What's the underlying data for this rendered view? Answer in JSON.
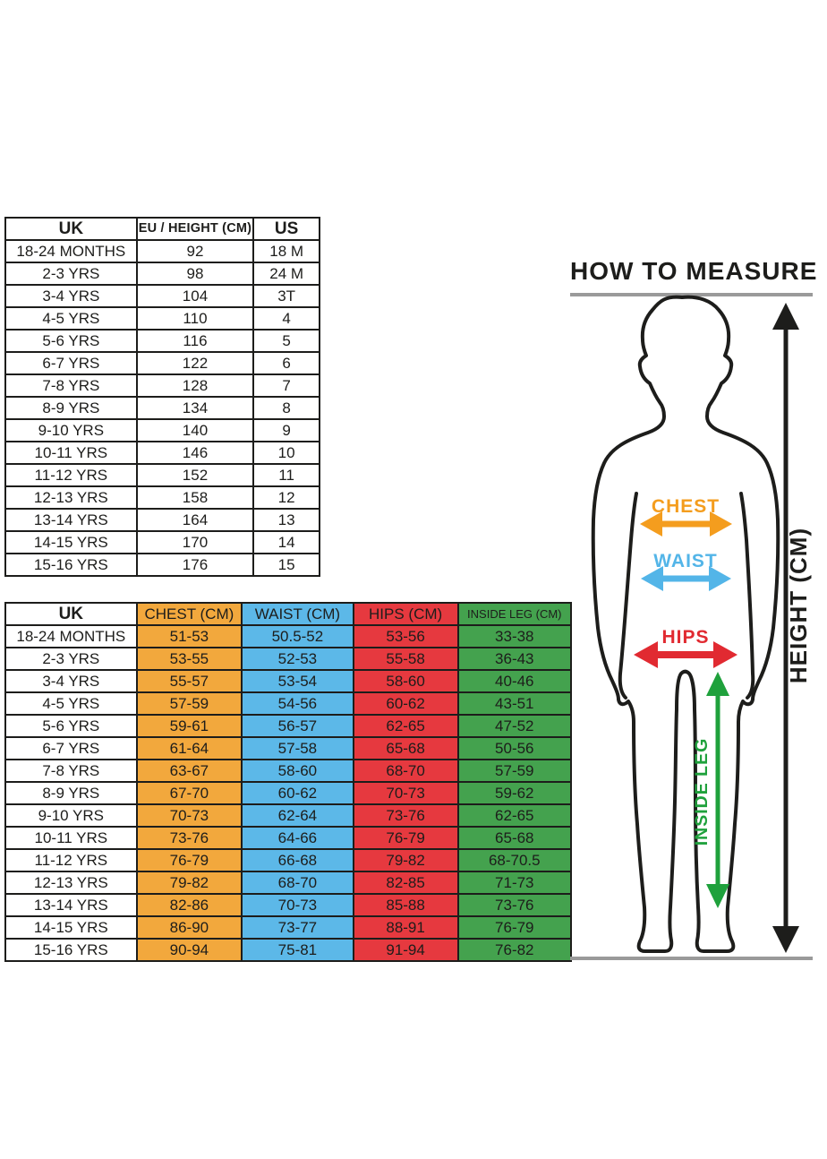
{
  "colors": {
    "table_chest": "#F2A83D",
    "table_waist": "#5CB8E8",
    "table_hips": "#E6393F",
    "table_inside_leg": "#44A24E",
    "arrow_chest": "#F49D1E",
    "arrow_waist": "#53B5E8",
    "arrow_hips": "#E12A31",
    "arrow_inside_leg": "#1FA13C",
    "arrow_height": "#1d1d1b",
    "gray_line": "#9a9a9a",
    "outline": "#1d1d1b"
  },
  "size_table": {
    "columns": [
      "UK",
      "EU / HEIGHT (CM)",
      "US"
    ],
    "rows": [
      [
        "18-24 MONTHS",
        "92",
        "18 M"
      ],
      [
        "2-3 YRS",
        "98",
        "24 M"
      ],
      [
        "3-4 YRS",
        "104",
        "3T"
      ],
      [
        "4-5 YRS",
        "110",
        "4"
      ],
      [
        "5-6 YRS",
        "116",
        "5"
      ],
      [
        "6-7 YRS",
        "122",
        "6"
      ],
      [
        "7-8 YRS",
        "128",
        "7"
      ],
      [
        "8-9 YRS",
        "134",
        "8"
      ],
      [
        "9-10 YRS",
        "140",
        "9"
      ],
      [
        "10-11 YRS",
        "146",
        "10"
      ],
      [
        "11-12 YRS",
        "152",
        "11"
      ],
      [
        "12-13 YRS",
        "158",
        "12"
      ],
      [
        "13-14 YRS",
        "164",
        "13"
      ],
      [
        "14-15 YRS",
        "170",
        "14"
      ],
      [
        "15-16 YRS",
        "176",
        "15"
      ]
    ]
  },
  "measurement_table": {
    "columns": [
      "UK",
      "CHEST (CM)",
      "WAIST (CM)",
      "HIPS (CM)",
      "INSIDE LEG (CM)"
    ],
    "rows": [
      [
        "18-24 MONTHS",
        "51-53",
        "50.5-52",
        "53-56",
        "33-38"
      ],
      [
        "2-3 YRS",
        "53-55",
        "52-53",
        "55-58",
        "36-43"
      ],
      [
        "3-4 YRS",
        "55-57",
        "53-54",
        "58-60",
        "40-46"
      ],
      [
        "4-5 YRS",
        "57-59",
        "54-56",
        "60-62",
        "43-51"
      ],
      [
        "5-6 YRS",
        "59-61",
        "56-57",
        "62-65",
        "47-52"
      ],
      [
        "6-7 YRS",
        "61-64",
        "57-58",
        "65-68",
        "50-56"
      ],
      [
        "7-8 YRS",
        "63-67",
        "58-60",
        "68-70",
        "57-59"
      ],
      [
        "8-9 YRS",
        "67-70",
        "60-62",
        "70-73",
        "59-62"
      ],
      [
        "9-10 YRS",
        "70-73",
        "62-64",
        "73-76",
        "62-65"
      ],
      [
        "10-11 YRS",
        "73-76",
        "64-66",
        "76-79",
        "65-68"
      ],
      [
        "11-12 YRS",
        "76-79",
        "66-68",
        "79-82",
        "68-70.5"
      ],
      [
        "12-13 YRS",
        "79-82",
        "68-70",
        "82-85",
        "71-73"
      ],
      [
        "13-14 YRS",
        "82-86",
        "70-73",
        "85-88",
        "73-76"
      ],
      [
        "14-15 YRS",
        "86-90",
        "73-77",
        "88-91",
        "76-79"
      ],
      [
        "15-16 YRS",
        "90-94",
        "75-81",
        "91-94",
        "76-82"
      ]
    ]
  },
  "diagram": {
    "title": "HOW TO MEASURE",
    "labels": {
      "chest": "CHEST",
      "waist": "WAIST",
      "hips": "HIPS",
      "inside_leg": "INSIDE LEG",
      "height": "HEIGHT (CM)"
    }
  }
}
